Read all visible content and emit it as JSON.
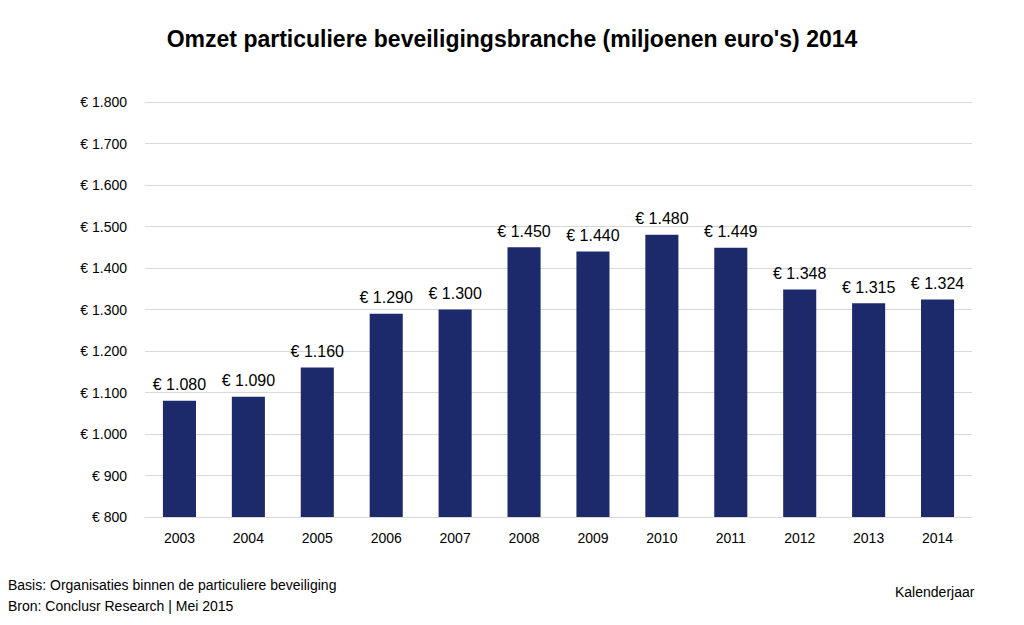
{
  "chart_data": {
    "type": "bar",
    "title": "Omzet particuliere beveiligingsbranche (miljoenen euro's) 2014",
    "x_label": "Kalenderjaar",
    "annotations": [
      "Basis: Organisaties binnen de particuliere beveiliging",
      "Bron: Conclusr Research | Mei 2015"
    ],
    "categories": [
      "2003",
      "2004",
      "2005",
      "2006",
      "2007",
      "2008",
      "2009",
      "2010",
      "2011",
      "2012",
      "2013",
      "2014"
    ],
    "values": [
      1080,
      1090,
      1160,
      1290,
      1300,
      1450,
      1440,
      1480,
      1449,
      1348,
      1315,
      1324
    ],
    "value_labels": [
      "€ 1.080",
      "€ 1.090",
      "€ 1.160",
      "€ 1.290",
      "€ 1.300",
      "€ 1.450",
      "€ 1.440",
      "€ 1.480",
      "€ 1.449",
      "€ 1.348",
      "€ 1.315",
      "€ 1.324"
    ],
    "color": "#1c2a6b",
    "ylim": [
      800,
      1800
    ],
    "yticks": [
      {
        "value": 800,
        "label": "€ 800"
      },
      {
        "value": 900,
        "label": "€ 900"
      },
      {
        "value": 1000,
        "label": "€ 1.000"
      },
      {
        "value": 1100,
        "label": "€ 1.100"
      },
      {
        "value": 1200,
        "label": "€ 1.200"
      },
      {
        "value": 1300,
        "label": "€ 1.300"
      },
      {
        "value": 1400,
        "label": "€ 1.400"
      },
      {
        "value": 1500,
        "label": "€ 1.500"
      },
      {
        "value": 1600,
        "label": "€ 1.600"
      },
      {
        "value": 1700,
        "label": "€ 1.700"
      },
      {
        "value": 1800,
        "label": "€ 1.800"
      }
    ],
    "grid": true,
    "data_labels": true
  }
}
